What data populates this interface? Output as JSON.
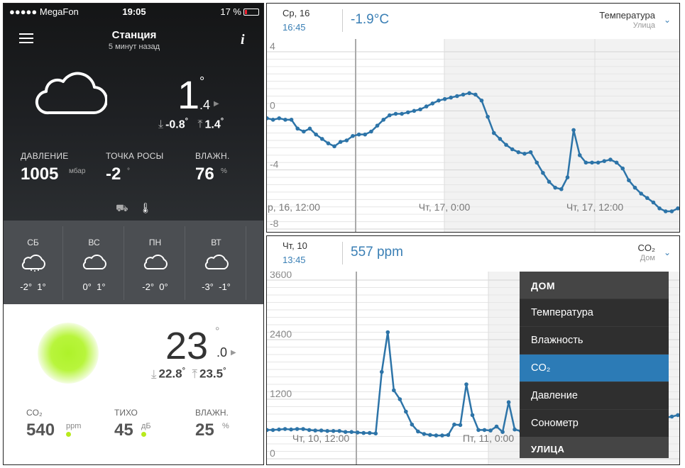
{
  "status": {
    "carrier": "●●●●● MegaFon",
    "time": "19:05",
    "battery": "17 %"
  },
  "station": {
    "title": "Станция",
    "subtitle": "5 минут назад"
  },
  "outdoor": {
    "temp_int": "1",
    "temp_dec": ".4",
    "deg": "°",
    "min": "-0.8",
    "max": "1.4",
    "pressure_label": "ДАВЛЕНИЕ",
    "pressure_value": "1005",
    "pressure_unit": "мбар",
    "dew_label": "ТОЧКА РОСЫ",
    "dew_value": "-2",
    "dew_unit": "°",
    "hum_label": "ВЛАЖН.",
    "hum_value": "76",
    "hum_unit": "%"
  },
  "forecast": [
    {
      "day": "СБ",
      "lo": "-2°",
      "hi": "1°",
      "icon": "snow-cloud-icon"
    },
    {
      "day": "ВС",
      "lo": "0°",
      "hi": "1°",
      "icon": "cloud-icon"
    },
    {
      "day": "ПН",
      "lo": "-2°",
      "hi": "0°",
      "icon": "cloud-icon"
    },
    {
      "day": "ВТ",
      "lo": "-3°",
      "hi": "-1°",
      "icon": "cloud-icon"
    }
  ],
  "indoor": {
    "temp_int": "23",
    "temp_dec": ".0",
    "deg": "°",
    "min": "22.8",
    "max": "23.5",
    "co2_label": "CO₂",
    "co2_value": "540",
    "co2_unit": "ppm",
    "noise_label": "ТИХО",
    "noise_value": "45",
    "noise_unit": "дБ",
    "hum_label": "ВЛАЖН.",
    "hum_value": "25",
    "hum_unit": "%"
  },
  "chart1_header": {
    "date": "Ср, 16",
    "time": "16:45",
    "value": "-1.9°C",
    "metric": "Температура",
    "location": "Улица"
  },
  "chart2_header": {
    "date": "Чт, 10",
    "time": "13:45",
    "value": "557 ppm",
    "metric": "CO₂",
    "location": "Дом"
  },
  "menu": {
    "section1": "ДОМ",
    "items": [
      "Температура",
      "Влажность",
      "CO₂",
      "Давление",
      "Сонометр"
    ],
    "selected": "CO₂",
    "section2": "УЛИЦА"
  },
  "colors": {
    "accent": "#3a7fb5",
    "menu_selected": "#2c7bb6",
    "co2_ok": "#b8ea1c"
  },
  "chart_data": [
    {
      "type": "line",
      "ylabel": "",
      "ylim": [
        -8,
        4
      ],
      "yticks": [
        "4",
        "0",
        "-4",
        "-8"
      ],
      "xticks": [
        "р, 16, 12:00",
        "Чт, 17, 0:00",
        "Чт, 17, 12:00"
      ],
      "series": [
        {
          "values": [
            -0.5,
            -0.6,
            -0.5,
            -0.6,
            -0.6,
            -1.2,
            -1.4,
            -1.2,
            -1.6,
            -1.9,
            -2.2,
            -2.4,
            -2.1,
            -2.0,
            -1.7,
            -1.6,
            -1.6,
            -1.4,
            -1.0,
            -0.6,
            -0.3,
            -0.2,
            -0.2,
            -0.1,
            0.0,
            0.1,
            0.3,
            0.5,
            0.7,
            0.8,
            0.9,
            1.0,
            1.1,
            1.2,
            1.1,
            0.7,
            -0.4,
            -1.5,
            -1.9,
            -2.3,
            -2.6,
            -2.8,
            -2.9,
            -2.8,
            -3.5,
            -4.2,
            -4.8,
            -5.2,
            -5.3,
            -4.5,
            -1.3,
            -3.0,
            -3.5,
            -3.5,
            -3.5,
            -3.4,
            -3.3,
            -3.5,
            -3.9,
            -4.7,
            -5.2,
            -5.6,
            -5.9,
            -6.2,
            -6.6,
            -6.8,
            -6.8,
            -6.6
          ]
        }
      ]
    },
    {
      "type": "line",
      "ylabel": "",
      "ylim": [
        0,
        3600
      ],
      "yticks": [
        "3600",
        "2400",
        "1200",
        "0"
      ],
      "xticks": [
        "Чт, 10, 12:00",
        "Пт, 11, 0:00"
      ],
      "series": [
        {
          "values": [
            580,
            580,
            590,
            600,
            590,
            600,
            600,
            580,
            570,
            570,
            560,
            560,
            560,
            540,
            540,
            530,
            520,
            520,
            510,
            1750,
            2550,
            1380,
            1200,
            950,
            690,
            550,
            500,
            480,
            470,
            470,
            480,
            690,
            680,
            1500,
            880,
            580,
            580,
            570,
            650,
            540,
            1140,
            590,
            560,
            570,
            620,
            700,
            740,
            700,
            760,
            810,
            830,
            820,
            790,
            760,
            760,
            780,
            790,
            800,
            810,
            800,
            800,
            810,
            820,
            820,
            820,
            820,
            830,
            850,
            880
          ]
        }
      ]
    }
  ]
}
